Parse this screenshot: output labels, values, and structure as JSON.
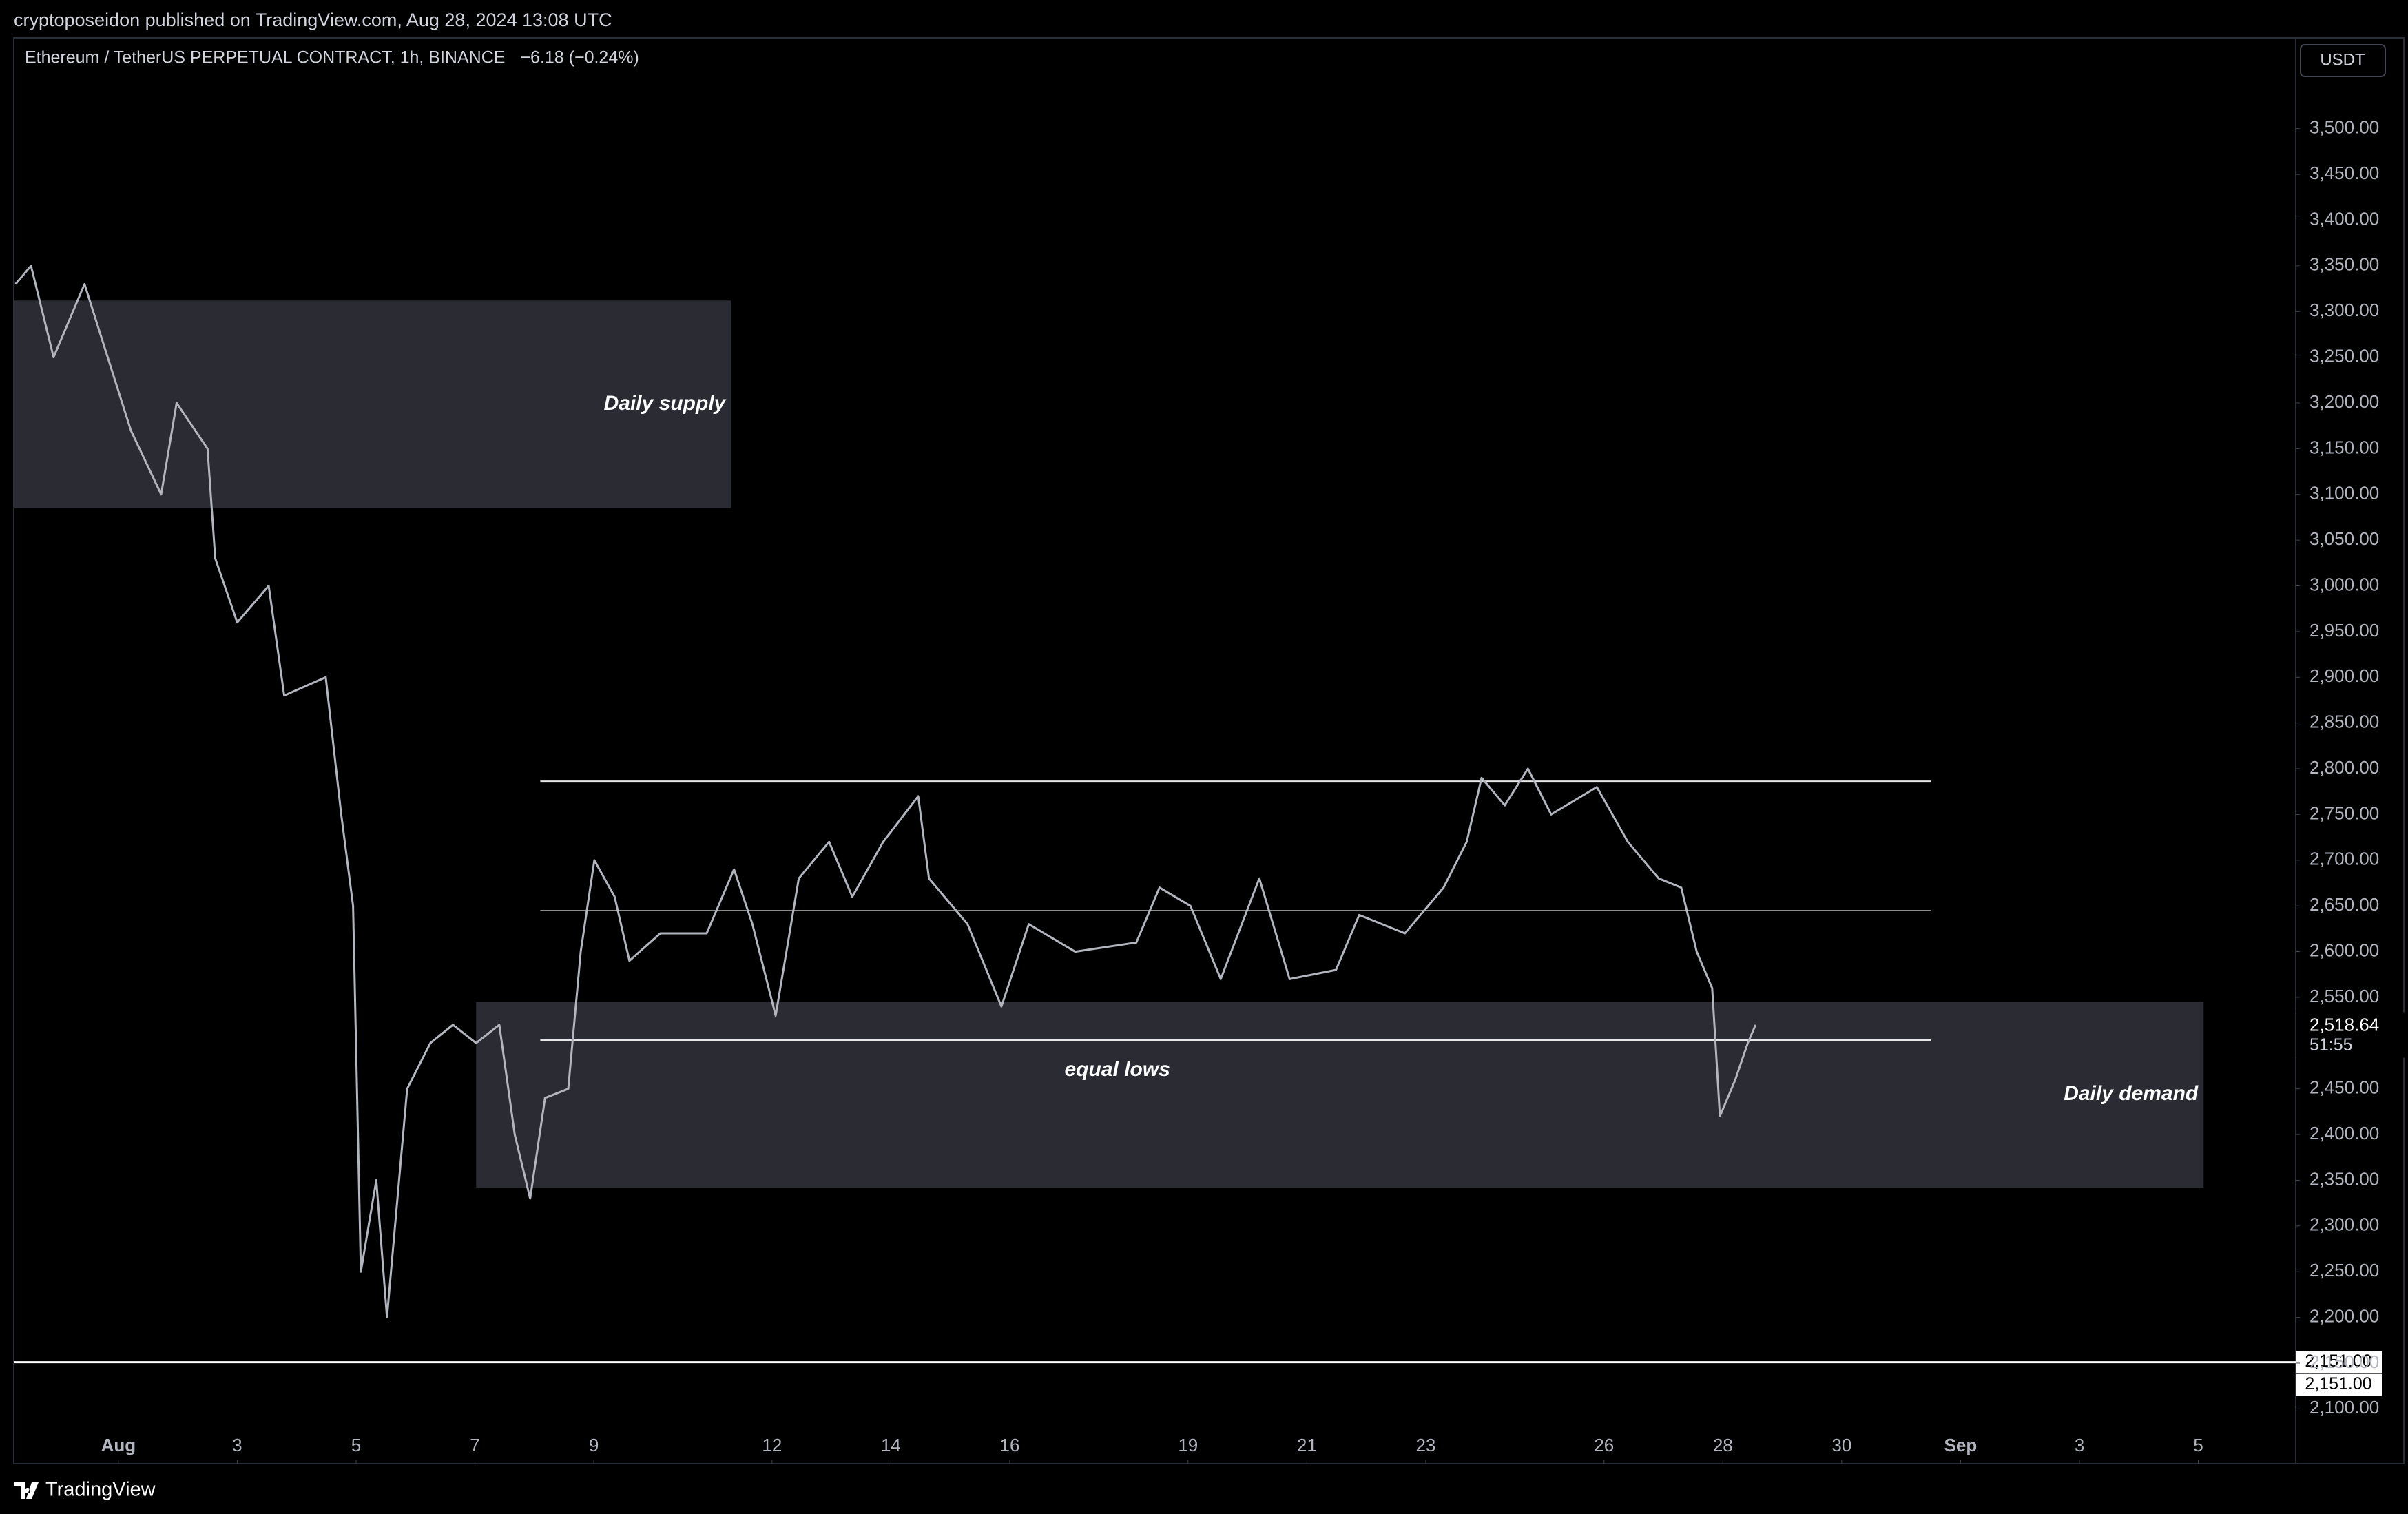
{
  "header": {
    "published": "cryptoposeidon published on TradingView.com, Aug 28, 2024 13:08 UTC",
    "symbol": "Ethereum / TetherUS PERPETUAL CONTRACT, 1h, BINANCE",
    "change": "−6.18 (−0.24%)",
    "currency": "USDT"
  },
  "footer": {
    "brand": "TradingView"
  },
  "chart_data": {
    "type": "line",
    "color": "#b2b5be",
    "grid": false,
    "x": [
      -0.73,
      -0.47,
      -0.09,
      0.43,
      0.82,
      1.21,
      1.72,
      1.98,
      2.5,
      2.63,
      3.0,
      3.53,
      3.79,
      4.49,
      4.75,
      4.95,
      5.08,
      5.34,
      5.52,
      5.86,
      6.25,
      6.63,
      7.02,
      7.41,
      7.67,
      7.93,
      8.18,
      8.57,
      8.78,
      9.01,
      9.35,
      9.6,
      10.12,
      10.9,
      11.36,
      11.67,
      12.06,
      12.45,
      12.96,
      13.35,
      13.87,
      14.46,
      14.64,
      15.29,
      15.86,
      16.32,
      17.1,
      18.13,
      18.52,
      19.04,
      19.55,
      20.2,
      20.71,
      21.49,
      21.88,
      22.65,
      23.3,
      23.69,
      23.94,
      24.33,
      24.72,
      25.11,
      25.88,
      26.4,
      26.92,
      27.3,
      27.56,
      27.82,
      27.95,
      28.21,
      28.42,
      28.55
    ],
    "values": [
      3330,
      3350,
      3250,
      3330,
      3250,
      3170,
      3100,
      3200,
      3150,
      3030,
      2960,
      3000,
      2880,
      2900,
      2750,
      2650,
      2250,
      2350,
      2200,
      2450,
      2500,
      2520,
      2500,
      2520,
      2400,
      2330,
      2440,
      2450,
      2600,
      2700,
      2660,
      2590,
      2620,
      2620,
      2690,
      2630,
      2530,
      2680,
      2720,
      2660,
      2720,
      2770,
      2680,
      2630,
      2540,
      2630,
      2600,
      2610,
      2670,
      2650,
      2570,
      2680,
      2570,
      2580,
      2640,
      2620,
      2670,
      2720,
      2790,
      2760,
      2800,
      2750,
      2780,
      2720,
      2680,
      2670,
      2600,
      2560,
      2420,
      2460,
      2500,
      2520
    ],
    "xlim": [
      -0.76,
      37.64
    ],
    "ylim": [
      2040,
      3548
    ],
    "xticks": [
      {
        "value": 1,
        "label": "Aug"
      },
      3,
      5,
      7,
      9,
      12,
      14,
      16,
      19,
      21,
      23,
      26,
      28,
      30,
      {
        "value": 32,
        "label": "Sep"
      },
      {
        "value": 34,
        "label": "3"
      },
      {
        "value": 36,
        "label": "5"
      }
    ],
    "yticks": [
      {
        "value": 2100,
        "label": "2,100.00"
      },
      {
        "value": 2150,
        "label": "2,150.00"
      },
      {
        "value": 2200,
        "label": "2,200.00"
      },
      {
        "value": 2250,
        "label": "2,250.00"
      },
      {
        "value": 2300,
        "label": "2,300.00"
      },
      {
        "value": 2350,
        "label": "2,350.00"
      },
      {
        "value": 2400,
        "label": "2,400.00"
      },
      {
        "value": 2450,
        "label": "2,450.00"
      },
      {
        "value": 2500,
        "label": "2,500.00"
      },
      {
        "value": 2550,
        "label": "2,550.00"
      },
      {
        "value": 2600,
        "label": "2,600.00"
      },
      {
        "value": 2650,
        "label": "2,650.00"
      },
      {
        "value": 2700,
        "label": "2,700.00"
      },
      {
        "value": 2750,
        "label": "2,750.00"
      },
      {
        "value": 2800,
        "label": "2,800.00"
      },
      {
        "value": 2850,
        "label": "2,850.00"
      },
      {
        "value": 2900,
        "label": "2,900.00"
      },
      {
        "value": 2950,
        "label": "2,950.00"
      },
      {
        "value": 3000,
        "label": "3,000.00"
      },
      {
        "value": 3050,
        "label": "3,050.00"
      },
      {
        "value": 3100,
        "label": "3,100.00"
      },
      {
        "value": 3150,
        "label": "3,150.00"
      },
      {
        "value": 3200,
        "label": "3,200.00"
      },
      {
        "value": 3250,
        "label": "3,250.00"
      },
      {
        "value": 3300,
        "label": "3,300.00"
      },
      {
        "value": 3350,
        "label": "3,350.00"
      },
      {
        "value": 3400,
        "label": "3,400.00"
      },
      {
        "value": 3450,
        "label": "3,450.00"
      },
      {
        "value": 3500,
        "label": "3,500.00"
      }
    ],
    "zones": [
      {
        "label": "Daily supply",
        "x": [
          -0.76,
          11.31
        ],
        "y": [
          3085,
          3312
        ]
      },
      {
        "label": "Daily demand",
        "x": [
          7.02,
          36.09
        ],
        "y": [
          2342,
          2545
        ]
      }
    ],
    "levels": [
      {
        "x": [
          8.1,
          31.5
        ],
        "value": 2786
      },
      {
        "x": [
          8.1,
          31.5
        ],
        "value": 2645
      },
      {
        "x": [
          8.1,
          31.5
        ],
        "value": 2503,
        "label": "equal lows"
      }
    ],
    "price_lines": [
      {
        "value": 2151,
        "label": "2,151.00"
      },
      {
        "value": 2151,
        "label": "2,151.00"
      }
    ],
    "last_price": {
      "value": 2518.64,
      "label": "2,518.64"
    },
    "countdown": "51:55"
  }
}
